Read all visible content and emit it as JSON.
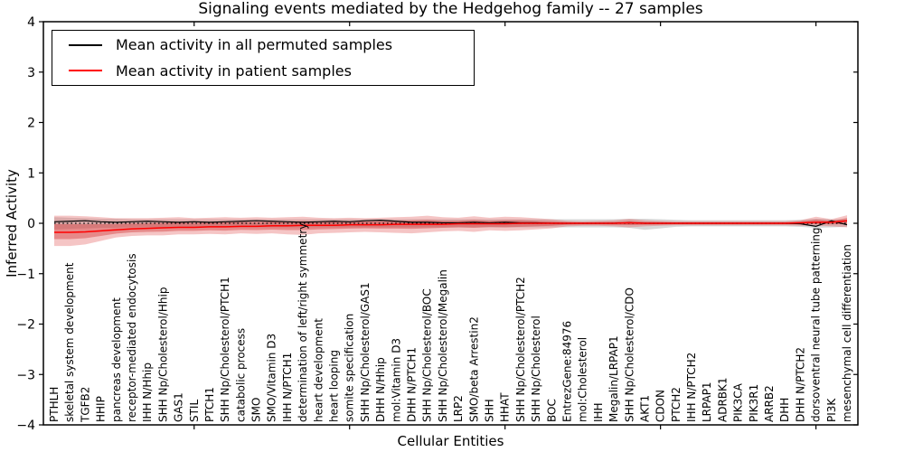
{
  "chart_data": {
    "type": "line",
    "title": "Signaling events mediated by the Hedgehog family -- 27 samples",
    "xlabel": "Cellular Entities",
    "ylabel": "Inferred Activity",
    "ylim": [
      -4,
      4
    ],
    "yticks": [
      -4,
      -3,
      -2,
      -1,
      0,
      1,
      2,
      3,
      4
    ],
    "xticks": [
      10,
      20,
      30,
      40,
      50
    ],
    "grid": false,
    "legend_position": "upper left",
    "zero_line": {
      "style": "dotted",
      "color": "#000000",
      "y": 0
    },
    "colors": {
      "permuted_line": "#000000",
      "patient_line": "#ff0000",
      "patient_band": "#e05050",
      "patient_band_inner": "#d03030",
      "permuted_band": "#999999"
    },
    "categories": [
      "PTHLH",
      "skeletal system development",
      "TGFB2",
      "HHIP",
      "pancreas development",
      "receptor-mediated endocytosis",
      "IHH N/Hhip",
      "SHH Np/Cholesterol/Hhip",
      "GAS1",
      "STIL",
      "PTCH1",
      "SHH Np/Cholesterol/PTCH1",
      "catabolic process",
      "SMO",
      "SMO/Vitamin D3",
      "IHH N/PTCH1",
      "determination of left/right symmetry",
      "heart development",
      "heart looping",
      "somite specification",
      "SHH Np/Cholesterol/GAS1",
      "DHH N/Hhip",
      "mol:Vitamin D3",
      "DHH N/PTCH1",
      "SHH Np/Cholesterol/BOC",
      "SHH Np/Cholesterol/Megalin",
      "LRP2",
      "SMO/beta Arrestin2",
      "SHH",
      "HHAT",
      "SHH Np/Cholesterol/PTCH2",
      "SHH Np/Cholesterol",
      "BOC",
      "EntrezGene:84976",
      "mol:Cholesterol",
      "IHH",
      "Megalin/LRPAP1",
      "SHH Np/Cholesterol/CDO",
      "AKT1",
      "CDON",
      "PTCH2",
      "IHH N/PTCH2",
      "LRPAP1",
      "ADRBK1",
      "PIK3CA",
      "PIK3R1",
      "ARRB2",
      "DHH",
      "DHH N/PTCH2",
      "dorsoventral neural tube patterning",
      "PI3K",
      "mesenchymal cell differentiation"
    ],
    "series": [
      {
        "name": "Mean activity in all permuted samples",
        "color": "#000000",
        "values": [
          0.03,
          0.04,
          0.05,
          0.03,
          0.02,
          0.03,
          0.04,
          0.03,
          0.02,
          0.03,
          0.02,
          0.03,
          0.04,
          0.05,
          0.04,
          0.03,
          0.02,
          0.03,
          0.04,
          0.03,
          0.05,
          0.06,
          0.04,
          0.02,
          0.02,
          0.01,
          0.01,
          0.02,
          0.01,
          0.02,
          0.01,
          0.01,
          0.0,
          0.0,
          0.0,
          0.0,
          0.0,
          0.01,
          0.0,
          0.0,
          0.0,
          0.0,
          0.0,
          0.0,
          0.0,
          0.0,
          0.0,
          0.0,
          -0.01,
          -0.06,
          0.05,
          -0.03
        ],
        "band_hi": [
          0.12,
          0.11,
          0.1,
          0.09,
          0.09,
          0.08,
          0.08,
          0.08,
          0.08,
          0.08,
          0.08,
          0.08,
          0.08,
          0.08,
          0.08,
          0.08,
          0.08,
          0.08,
          0.08,
          0.08,
          0.08,
          0.08,
          0.08,
          0.08,
          0.08,
          0.08,
          0.08,
          0.08,
          0.08,
          0.08,
          0.08,
          0.08,
          0.08,
          0.08,
          0.08,
          0.08,
          0.08,
          0.09,
          0.09,
          0.08,
          0.07,
          0.06,
          0.06,
          0.06,
          0.06,
          0.06,
          0.06,
          0.06,
          0.07,
          0.09,
          0.08,
          0.07
        ],
        "band_lo": [
          -0.12,
          -0.11,
          -0.1,
          -0.09,
          -0.09,
          -0.08,
          -0.08,
          -0.08,
          -0.08,
          -0.08,
          -0.08,
          -0.08,
          -0.08,
          -0.08,
          -0.08,
          -0.08,
          -0.08,
          -0.08,
          -0.08,
          -0.08,
          -0.08,
          -0.08,
          -0.08,
          -0.08,
          -0.08,
          -0.08,
          -0.08,
          -0.08,
          -0.08,
          -0.08,
          -0.08,
          -0.08,
          -0.08,
          -0.08,
          -0.08,
          -0.08,
          -0.08,
          -0.09,
          -0.13,
          -0.1,
          -0.07,
          -0.06,
          -0.06,
          -0.06,
          -0.06,
          -0.06,
          -0.06,
          -0.06,
          -0.07,
          -0.09,
          -0.08,
          -0.07
        ]
      },
      {
        "name": "Mean activity in patient samples",
        "color": "#ff0000",
        "values": [
          -0.18,
          -0.18,
          -0.17,
          -0.15,
          -0.13,
          -0.11,
          -0.1,
          -0.09,
          -0.08,
          -0.08,
          -0.07,
          -0.07,
          -0.06,
          -0.06,
          -0.05,
          -0.05,
          -0.04,
          -0.04,
          -0.04,
          -0.03,
          -0.03,
          -0.03,
          -0.02,
          -0.02,
          -0.02,
          -0.02,
          -0.01,
          -0.01,
          -0.01,
          -0.01,
          0.0,
          0.0,
          0.0,
          0.0,
          0.0,
          0.0,
          0.0,
          0.01,
          0.0,
          0.0,
          0.0,
          0.0,
          0.0,
          0.0,
          0.0,
          0.0,
          0.0,
          0.0,
          0.01,
          0.02,
          0.02,
          0.05
        ],
        "band_hi": [
          0.15,
          0.15,
          0.14,
          0.12,
          0.1,
          0.1,
          0.1,
          0.11,
          0.12,
          0.1,
          0.11,
          0.12,
          0.11,
          0.12,
          0.11,
          0.12,
          0.13,
          0.11,
          0.1,
          0.11,
          0.1,
          0.11,
          0.12,
          0.13,
          0.15,
          0.12,
          0.11,
          0.14,
          0.11,
          0.13,
          0.12,
          0.1,
          0.08,
          0.05,
          0.04,
          0.05,
          0.06,
          0.09,
          0.06,
          0.05,
          0.04,
          0.04,
          0.04,
          0.04,
          0.04,
          0.04,
          0.04,
          0.04,
          0.06,
          0.13,
          0.08,
          0.16
        ],
        "band_lo": [
          -0.45,
          -0.45,
          -0.42,
          -0.35,
          -0.28,
          -0.25,
          -0.24,
          -0.24,
          -0.22,
          -0.22,
          -0.21,
          -0.22,
          -0.2,
          -0.21,
          -0.2,
          -0.22,
          -0.23,
          -0.2,
          -0.19,
          -0.18,
          -0.17,
          -0.18,
          -0.19,
          -0.2,
          -0.18,
          -0.16,
          -0.15,
          -0.17,
          -0.14,
          -0.15,
          -0.14,
          -0.12,
          -0.1,
          -0.06,
          -0.05,
          -0.05,
          -0.06,
          -0.08,
          -0.06,
          -0.05,
          -0.04,
          -0.04,
          -0.04,
          -0.04,
          -0.04,
          -0.04,
          -0.04,
          -0.04,
          -0.05,
          -0.05,
          -0.06,
          -0.08
        ]
      }
    ]
  }
}
